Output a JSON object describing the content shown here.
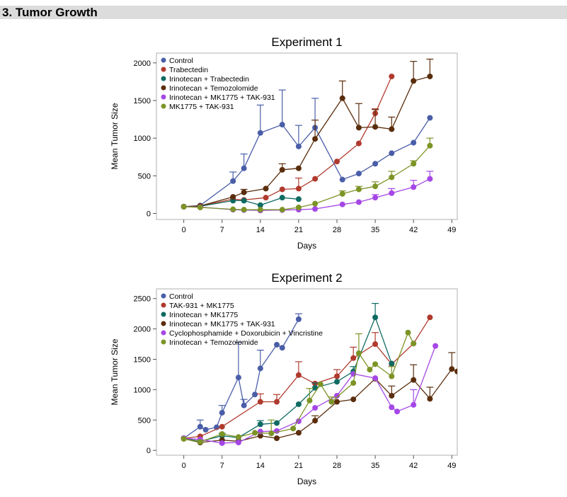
{
  "section": {
    "title": "3. Tumor Growth"
  },
  "colors": {
    "blue": "#4a5ea8",
    "red": "#b03a2e",
    "teal": "#0f6b62",
    "brown": "#5a2d0c",
    "purple": "#a547e6",
    "olive": "#7c9426"
  },
  "chart_data": [
    {
      "type": "line",
      "title": "Experiment 1",
      "xlabel": "Days",
      "ylabel": "Mean Tumor Size",
      "xlim": [
        -5,
        50
      ],
      "ylim": [
        -80,
        2130
      ],
      "xticks": [
        0,
        7,
        14,
        21,
        28,
        35,
        42,
        49
      ],
      "yticks": [
        0,
        500,
        1000,
        1500,
        2000
      ],
      "legend_position": "top-left",
      "series": [
        {
          "name": "Control",
          "color": "blue",
          "x": [
            0,
            3,
            9,
            11,
            14,
            18,
            21,
            24,
            29,
            32,
            35,
            38,
            42,
            45
          ],
          "y": [
            90,
            105,
            430,
            600,
            1070,
            1180,
            890,
            1140,
            450,
            530,
            660,
            800,
            940,
            1270
          ],
          "err": [
            0,
            0,
            120,
            190,
            370,
            460,
            280,
            390,
            0,
            0,
            0,
            0,
            0,
            0
          ]
        },
        {
          "name": "Trabectedin",
          "color": "red",
          "x": [
            0,
            3,
            9,
            11,
            15,
            18,
            21,
            24,
            28,
            32,
            35,
            38
          ],
          "y": [
            90,
            100,
            190,
            180,
            210,
            320,
            330,
            460,
            690,
            930,
            1330,
            1820
          ],
          "err": [
            0,
            0,
            0,
            0,
            0,
            0,
            140,
            0,
            0,
            0,
            60,
            0
          ]
        },
        {
          "name": "Irinotecan + Trabectedin",
          "color": "teal",
          "x": [
            0,
            3,
            9,
            11,
            14,
            18,
            21
          ],
          "y": [
            90,
            95,
            170,
            170,
            110,
            210,
            190
          ],
          "err": [
            0,
            0,
            0,
            0,
            0,
            0,
            0
          ]
        },
        {
          "name": "Irinotecan + Temozolomide",
          "color": "brown",
          "x": [
            0,
            3,
            9,
            11,
            15,
            18,
            21,
            24,
            29,
            32,
            35,
            38,
            42,
            45
          ],
          "y": [
            90,
            100,
            220,
            280,
            330,
            580,
            600,
            990,
            1530,
            1140,
            1150,
            1120,
            1760,
            1820
          ],
          "err": [
            0,
            0,
            0,
            40,
            0,
            80,
            0,
            250,
            230,
            320,
            230,
            160,
            260,
            230
          ]
        },
        {
          "name": "Irinotecan + MK1775 + TAK-931",
          "color": "purple",
          "x": [
            0,
            3,
            9,
            11,
            14,
            18,
            21,
            24,
            29,
            32,
            35,
            38,
            42,
            45
          ],
          "y": [
            90,
            85,
            50,
            45,
            40,
            45,
            50,
            60,
            120,
            150,
            210,
            270,
            350,
            460
          ],
          "err": [
            0,
            0,
            0,
            0,
            0,
            0,
            0,
            0,
            0,
            0,
            40,
            60,
            90,
            100
          ]
        },
        {
          "name": "MK1775 + TAK-931",
          "color": "olive",
          "x": [
            0,
            3,
            9,
            11,
            14,
            18,
            21,
            24,
            29,
            32,
            35,
            38,
            42,
            45
          ],
          "y": [
            90,
            80,
            55,
            50,
            50,
            50,
            80,
            130,
            260,
            320,
            360,
            480,
            660,
            900
          ],
          "err": [
            0,
            0,
            0,
            0,
            0,
            0,
            0,
            0,
            40,
            40,
            60,
            80,
            40,
            100
          ]
        }
      ]
    },
    {
      "type": "line",
      "title": "Experiment 2",
      "xlabel": "Days",
      "ylabel": "Mean Tumor Size",
      "xlim": [
        -5,
        50
      ],
      "ylim": [
        -80,
        2660
      ],
      "xticks": [
        0,
        7,
        14,
        21,
        28,
        35,
        42,
        49
      ],
      "yticks": [
        0,
        500,
        1000,
        1500,
        2000,
        2500
      ],
      "legend_position": "top-left",
      "series": [
        {
          "name": "Control",
          "color": "blue",
          "x": [
            0,
            3,
            4,
            6,
            7,
            10,
            11,
            13,
            14,
            17,
            18,
            21
          ],
          "y": [
            200,
            390,
            340,
            380,
            620,
            1200,
            740,
            920,
            1350,
            1740,
            1690,
            2160
          ],
          "err": [
            0,
            110,
            0,
            0,
            120,
            580,
            100,
            0,
            300,
            0,
            0,
            90
          ]
        },
        {
          "name": "TAK-931 + MK1775",
          "color": "red",
          "x": [
            0,
            3,
            7,
            14,
            17,
            21,
            24,
            28,
            31,
            35,
            38,
            42,
            45
          ],
          "y": [
            200,
            230,
            390,
            800,
            800,
            1240,
            1100,
            1220,
            1520,
            1750,
            1420,
            1760,
            2190
          ],
          "err": [
            0,
            0,
            0,
            130,
            120,
            220,
            0,
            110,
            180,
            190,
            0,
            0,
            0
          ]
        },
        {
          "name": "Irinotecan + MK1775",
          "color": "teal",
          "x": [
            0,
            3,
            7,
            10,
            14,
            17,
            21,
            24,
            28,
            31,
            35,
            38
          ],
          "y": [
            200,
            150,
            240,
            210,
            430,
            450,
            760,
            1030,
            1130,
            1300,
            2190,
            1430
          ],
          "err": [
            0,
            0,
            40,
            0,
            60,
            0,
            0,
            80,
            0,
            80,
            230,
            0
          ]
        },
        {
          "name": "Irinotecan + MK1775 + TAK-931",
          "color": "brown",
          "x": [
            0,
            3,
            7,
            10,
            14,
            17,
            21,
            24,
            28,
            31,
            35,
            38,
            42,
            45,
            49,
            50
          ],
          "y": [
            190,
            130,
            170,
            150,
            240,
            200,
            290,
            490,
            800,
            840,
            1180,
            900,
            1160,
            850,
            1340,
            1300
          ],
          "err": [
            0,
            0,
            0,
            0,
            0,
            0,
            0,
            80,
            0,
            0,
            0,
            160,
            250,
            190,
            270,
            0
          ]
        },
        {
          "name": "Cyclophosphamide + Doxorubicin + Vincristine",
          "color": "purple",
          "x": [
            0,
            3,
            7,
            10,
            14,
            17,
            21,
            24,
            28,
            31,
            35,
            38,
            39,
            42,
            46
          ],
          "y": [
            200,
            180,
            120,
            130,
            310,
            320,
            480,
            700,
            900,
            1260,
            1190,
            710,
            640,
            750,
            1720
          ],
          "err": [
            0,
            0,
            0,
            0,
            0,
            0,
            0,
            0,
            0,
            0,
            0,
            0,
            0,
            250,
            0
          ]
        },
        {
          "name": "Irinotecan + Temozolomide",
          "color": "olive",
          "x": [
            0,
            3,
            7,
            10,
            13,
            16,
            20,
            23,
            25,
            27,
            31,
            32,
            34,
            35,
            38,
            41,
            42
          ],
          "y": [
            190,
            140,
            270,
            220,
            290,
            280,
            360,
            820,
            1090,
            800,
            1110,
            1600,
            1330,
            1420,
            1220,
            1940,
            1760
          ],
          "err": [
            0,
            0,
            0,
            0,
            0,
            220,
            0,
            200,
            0,
            80,
            0,
            320,
            0,
            0,
            160,
            0,
            0
          ]
        }
      ]
    }
  ]
}
